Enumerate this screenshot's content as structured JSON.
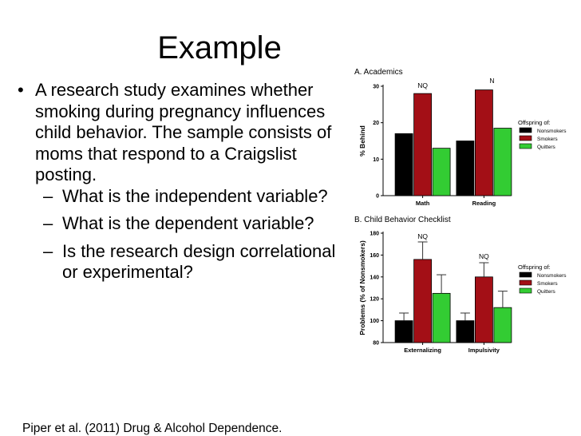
{
  "slide": {
    "title": "Example",
    "bullets": [
      {
        "level": 1,
        "mark": "•",
        "text": "A research study examines whether smoking during pregnancy influences child behavior. The sample consists of moms that respond to a Craigslist posting."
      },
      {
        "level": 2,
        "mark": "–",
        "text": "What is the independent variable?"
      },
      {
        "level": 2,
        "mark": "–",
        "text": "What is the dependent variable?"
      },
      {
        "level": 2,
        "mark": "–",
        "text": "Is the research design correlational or experimental?"
      }
    ],
    "citation": "Piper et al. (2011) Drug & Alcohol Dependence."
  },
  "chart_data": [
    {
      "type": "bar",
      "title": "A. Academics",
      "ylabel": "% Behind",
      "xlabel": "",
      "categories": [
        "Math",
        "Reading"
      ],
      "ylim": [
        0,
        30
      ],
      "yticks": [
        0,
        10,
        20,
        30
      ],
      "series": [
        {
          "name": "Nonsmokers",
          "values": [
            17,
            15
          ]
        },
        {
          "name": "Smokers",
          "values": [
            28,
            29
          ]
        },
        {
          "name": "Quitters",
          "values": [
            13,
            18.5
          ]
        }
      ],
      "annotations": [
        "NQ",
        "N"
      ],
      "legend": {
        "title": "Offspring of:",
        "placement": "right"
      },
      "colors": {
        "Nonsmokers": "#000000",
        "Smokers": "#a30f16",
        "Quitters": "#33cc33"
      },
      "grid": false
    },
    {
      "type": "bar",
      "title": "B. Child Behavior Checklist",
      "ylabel": "Problems (% of Nonsmokers)",
      "xlabel": "",
      "categories": [
        "Externalizing",
        "Impulsivity"
      ],
      "ylim": [
        80,
        180
      ],
      "yticks": [
        80,
        100,
        120,
        140,
        160,
        180
      ],
      "series": [
        {
          "name": "Nonsmokers",
          "values": [
            100,
            100
          ],
          "errors": [
            7,
            7
          ]
        },
        {
          "name": "Smokers",
          "values": [
            156,
            140
          ],
          "errors": [
            16,
            13
          ]
        },
        {
          "name": "Quitters",
          "values": [
            125,
            112
          ],
          "errors": [
            17,
            15
          ]
        }
      ],
      "annotations": [
        "NQ",
        "NQ"
      ],
      "legend": {
        "title": "Offspring of:",
        "placement": "right"
      },
      "colors": {
        "Nonsmokers": "#000000",
        "Smokers": "#a30f16",
        "Quitters": "#33cc33"
      },
      "grid": false
    }
  ]
}
